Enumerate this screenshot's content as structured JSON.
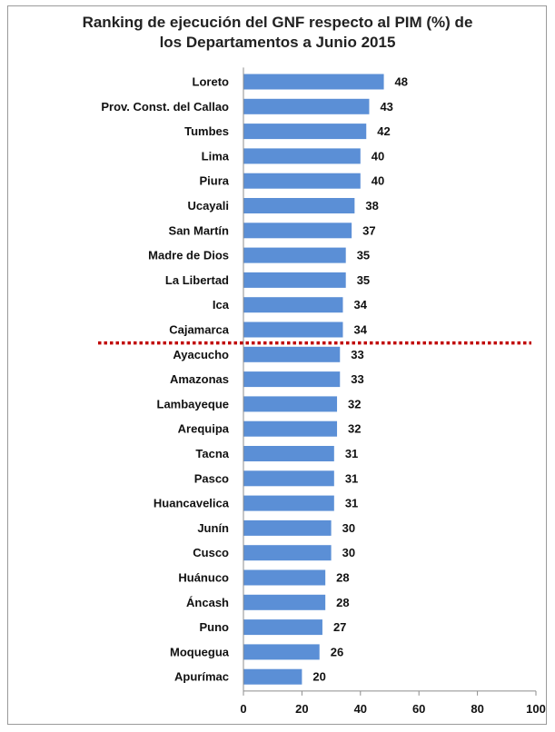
{
  "chart_data": {
    "type": "bar",
    "orientation": "horizontal",
    "title_lines": [
      "Ranking de ejecución del GNF respecto al PIM (%) de",
      "los Departamentos a Junio 2015"
    ],
    "categories": [
      "Loreto",
      "Prov. Const. del Callao",
      "Tumbes",
      "Lima",
      "Piura",
      "Ucayali",
      "San Martín",
      "Madre de Dios",
      "La Libertad",
      "Ica",
      "Cajamarca",
      "Ayacucho",
      "Amazonas",
      "Lambayeque",
      "Arequipa",
      "Tacna",
      "Pasco",
      "Huancavelica",
      "Junín",
      "Cusco",
      "Huánuco",
      "Áncash",
      "Puno",
      "Moquegua",
      "Apurímac"
    ],
    "values": [
      48,
      43,
      42,
      40,
      40,
      38,
      37,
      35,
      35,
      34,
      34,
      33,
      33,
      32,
      32,
      31,
      31,
      31,
      30,
      30,
      28,
      28,
      27,
      26,
      20
    ],
    "data_labels": [
      "48",
      "43",
      "42",
      "40",
      "40",
      "38",
      "37",
      "35",
      "35",
      "34",
      "34",
      "33",
      "33",
      "32",
      "32",
      "31",
      "31",
      "31",
      "30",
      "30",
      "28",
      "28",
      "27",
      "26",
      "20"
    ],
    "xlim": [
      0,
      100
    ],
    "x_ticks": [
      "0",
      "20",
      "40",
      "60",
      "80",
      "100"
    ],
    "bar_color": "#5b8fd6",
    "reference_line": {
      "after_category": "Cajamarca",
      "color": "#c00000",
      "style": "dotted"
    },
    "grid": false
  }
}
